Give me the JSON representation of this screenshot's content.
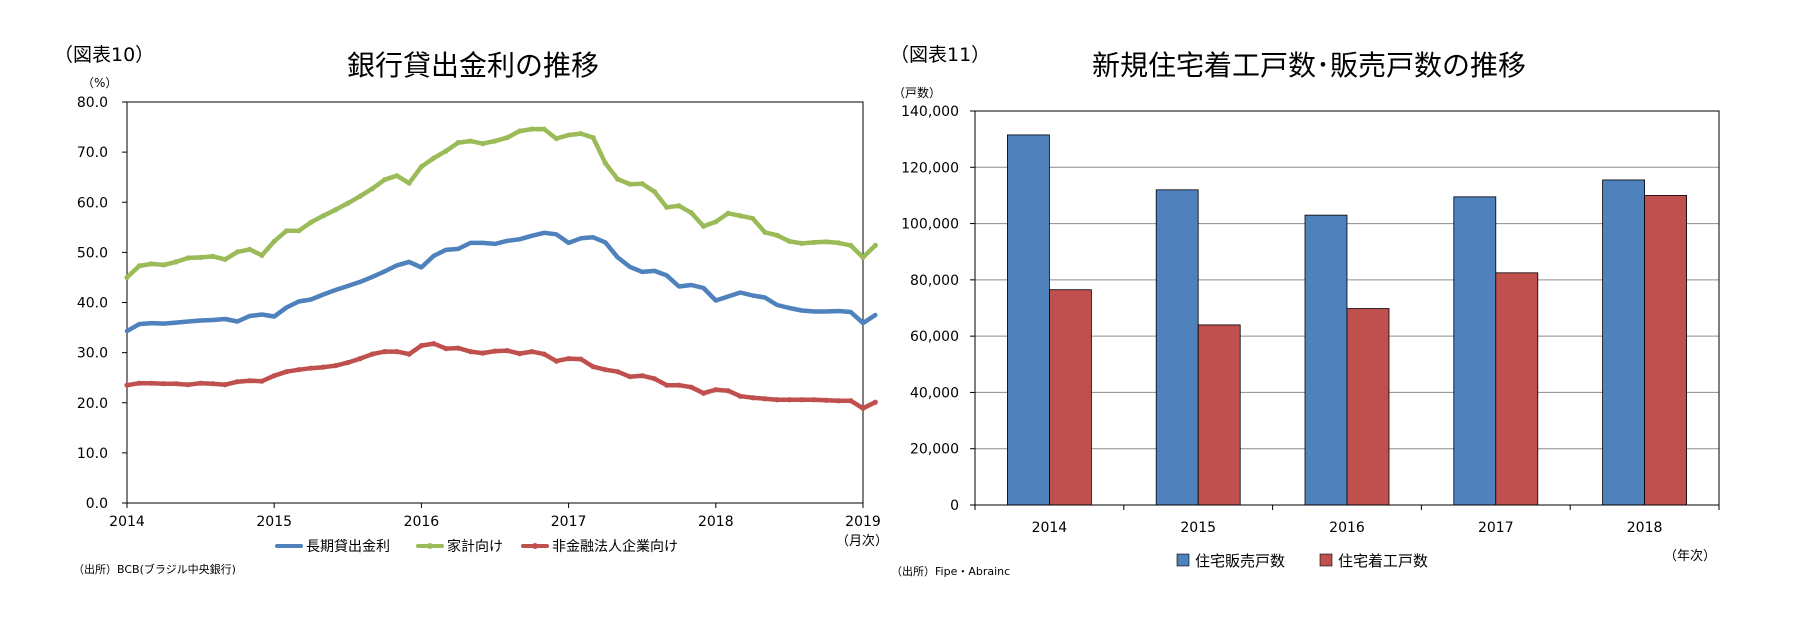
{
  "left_panel": {
    "tag": "（図表10）",
    "title": "銀行貸出金利の推移",
    "unit": "（%）",
    "x_unit": "（月次）",
    "source": "（出所）BCB(ブラジル中央銀行)"
  },
  "right_panel": {
    "tag": "（図表11）",
    "title": "新規住宅着工戸数･販売戸数の推移",
    "unit": "（戸数）",
    "x_unit": "（年次）",
    "source": "（出所）Fipe・Abrainc"
  },
  "chart_data": [
    {
      "type": "line",
      "title": "銀行貸出金利の推移",
      "ylim": [
        0,
        80
      ],
      "y_ticks": [
        "0.0",
        "10.0",
        "20.0",
        "30.0",
        "40.0",
        "50.0",
        "60.0",
        "70.0",
        "80.0"
      ],
      "x_ticks": [
        "2014",
        "2015",
        "2016",
        "2017",
        "2018",
        "2019"
      ],
      "x_start": "2014-01",
      "x_step": "month",
      "grid": false,
      "legend_position": "bottom",
      "series": [
        {
          "name": "長期貸出金利",
          "color": "#4f81bd",
          "markers": false,
          "values": [
            34.3,
            35.7,
            35.9,
            35.8,
            36.0,
            36.2,
            36.4,
            36.5,
            36.7,
            36.2,
            37.3,
            37.6,
            37.2,
            39.0,
            40.2,
            40.6,
            41.6,
            42.5,
            43.3,
            44.1,
            45.1,
            46.2,
            47.4,
            48.1,
            47.0,
            49.3,
            50.5,
            50.7,
            51.9,
            51.9,
            51.7,
            52.3,
            52.6,
            53.3,
            53.9,
            53.6,
            51.9,
            52.8,
            53.0,
            52.0,
            49.0,
            47.1,
            46.1,
            46.3,
            45.4,
            43.2,
            43.5,
            42.9,
            40.4,
            41.2,
            42.0,
            41.4,
            41.0,
            39.5,
            38.9,
            38.4,
            38.2,
            38.2,
            38.3,
            38.1,
            35.9,
            37.5
          ]
        },
        {
          "name": "家計向け",
          "color": "#9bbb59",
          "markers": true,
          "values": [
            45.0,
            47.3,
            47.7,
            47.5,
            48.1,
            48.9,
            49.0,
            49.2,
            48.6,
            50.1,
            50.6,
            49.4,
            52.2,
            54.3,
            54.3,
            56.0,
            57.3,
            58.5,
            59.8,
            61.2,
            62.7,
            64.5,
            65.3,
            63.8,
            67.1,
            68.8,
            70.2,
            71.9,
            72.2,
            71.7,
            72.2,
            72.9,
            74.2,
            74.6,
            74.6,
            72.7,
            73.4,
            73.7,
            72.9,
            67.8,
            64.6,
            63.6,
            63.7,
            62.1,
            59.0,
            59.3,
            57.9,
            55.2,
            56.1,
            57.8,
            57.3,
            56.8,
            54.0,
            53.4,
            52.2,
            51.8,
            52.0,
            52.1,
            51.9,
            51.4,
            49.0,
            51.4
          ]
        },
        {
          "name": "非金融法人企業向け",
          "color": "#c0504d",
          "markers": true,
          "values": [
            23.5,
            23.9,
            23.9,
            23.8,
            23.8,
            23.6,
            23.9,
            23.8,
            23.6,
            24.2,
            24.4,
            24.3,
            25.4,
            26.2,
            26.6,
            26.9,
            27.1,
            27.4,
            28.0,
            28.8,
            29.7,
            30.2,
            30.2,
            29.7,
            31.4,
            31.8,
            30.8,
            30.9,
            30.2,
            29.9,
            30.3,
            30.4,
            29.8,
            30.2,
            29.7,
            28.3,
            28.8,
            28.7,
            27.2,
            26.6,
            26.2,
            25.2,
            25.4,
            24.8,
            23.5,
            23.5,
            23.1,
            21.9,
            22.6,
            22.4,
            21.3,
            21.0,
            20.8,
            20.6,
            20.6,
            20.6,
            20.6,
            20.5,
            20.4,
            20.4,
            18.9,
            20.1
          ]
        }
      ]
    },
    {
      "type": "bar",
      "title": "新規住宅着工戸数･販売戸数の推移",
      "categories": [
        "2014",
        "2015",
        "2016",
        "2017",
        "2018"
      ],
      "ylim": [
        0,
        140000
      ],
      "y_ticks": [
        "0",
        "20,000",
        "40,000",
        "60,000",
        "80,000",
        "100,000",
        "120,000",
        "140,000"
      ],
      "grid": true,
      "legend_position": "bottom",
      "series": [
        {
          "name": "住宅販売戸数",
          "color": "#4f81bd",
          "values": [
            131500,
            112000,
            103000,
            109500,
            115500
          ]
        },
        {
          "name": "住宅着工戸数",
          "color": "#c0504d",
          "values": [
            76500,
            64000,
            69800,
            82500,
            110000
          ]
        }
      ]
    }
  ]
}
